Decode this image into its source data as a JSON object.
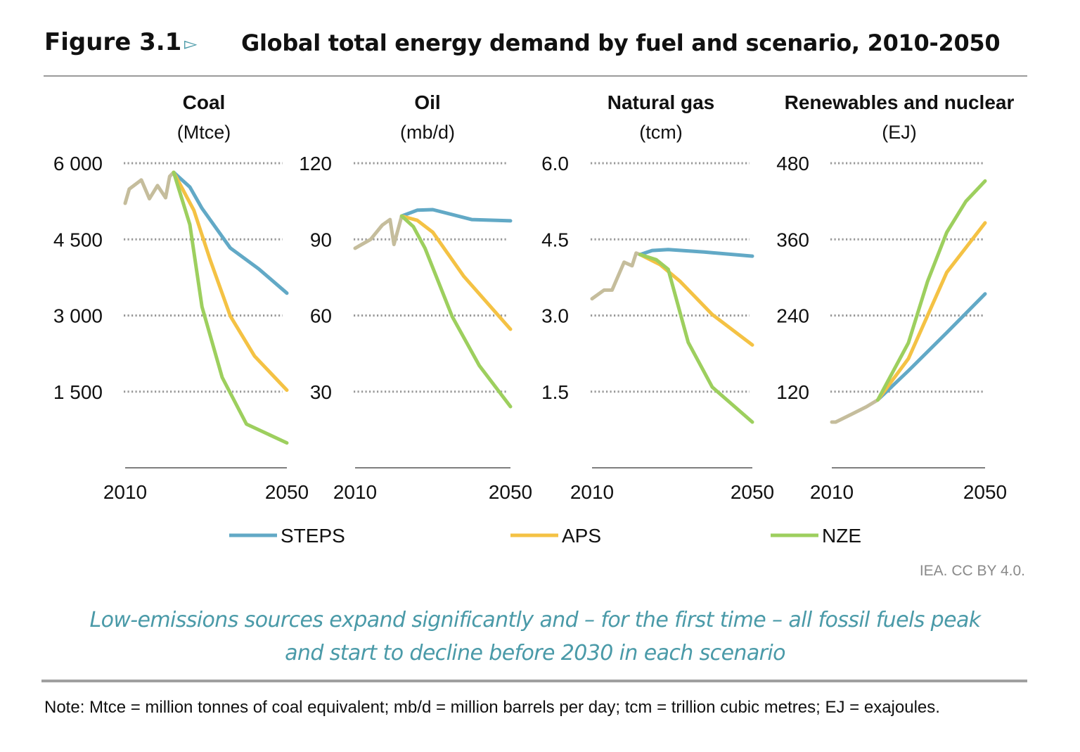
{
  "header": {
    "figure_label": "Figure 3.1",
    "arrow_icon": "triangle-right-outline-icon",
    "title": "Global total energy demand by fuel and scenario, 2010-2050"
  },
  "colors": {
    "historical": "#c5bd9c",
    "STEPS": "#62a9c6",
    "APS": "#f4c244",
    "NZE": "#9dcf5e",
    "accent": "#4a9aa8",
    "grid": "#999999"
  },
  "chart_data": [
    {
      "type": "line",
      "title": "Coal",
      "unit": "(Mtce)",
      "xlim": [
        2010,
        2050
      ],
      "ylim": [
        0,
        6000
      ],
      "yticks": [
        "6 000",
        "4 500",
        "3 000",
        "1 500"
      ],
      "ytick_values": [
        6000,
        4500,
        3000,
        1500
      ],
      "xticks": [
        "2010",
        "2050"
      ],
      "grid": true,
      "historical": {
        "x": [
          2010,
          2011,
          2014,
          2016,
          2018,
          2020,
          2021,
          2022
        ],
        "y": [
          5210,
          5490,
          5670,
          5300,
          5560,
          5320,
          5740,
          5820
        ]
      },
      "series": [
        {
          "name": "STEPS",
          "x": [
            2022,
            2026,
            2029,
            2036,
            2043,
            2050
          ],
          "y": [
            5820,
            5530,
            5110,
            4330,
            3920,
            3440
          ]
        },
        {
          "name": "APS",
          "x": [
            2022,
            2027,
            2031,
            2036,
            2042,
            2050
          ],
          "y": [
            5820,
            5070,
            4100,
            2990,
            2200,
            1530
          ]
        },
        {
          "name": "NZE",
          "x": [
            2022,
            2026,
            2029,
            2034,
            2040,
            2050
          ],
          "y": [
            5820,
            4790,
            3170,
            1780,
            860,
            490
          ]
        }
      ]
    },
    {
      "type": "line",
      "title": "Oil",
      "unit": "(mb/d)",
      "xlim": [
        2010,
        2050
      ],
      "ylim": [
        0,
        120
      ],
      "yticks": [
        "120",
        "90",
        "60",
        "30"
      ],
      "ytick_values": [
        120,
        90,
        60,
        30
      ],
      "xticks": [
        "2010",
        "2050"
      ],
      "grid": true,
      "historical": {
        "x": [
          2010,
          2014,
          2017,
          2019,
          2020,
          2022
        ],
        "y": [
          86.5,
          90,
          95.6,
          97.8,
          88,
          99.2
        ]
      },
      "series": [
        {
          "name": "STEPS",
          "x": [
            2022,
            2026,
            2030,
            2040,
            2050
          ],
          "y": [
            99.2,
            101.5,
            101.7,
            97.8,
            97.3
          ]
        },
        {
          "name": "APS",
          "x": [
            2022,
            2026,
            2030,
            2038,
            2050
          ],
          "y": [
            99.2,
            97.5,
            92.8,
            75.4,
            54.6
          ]
        },
        {
          "name": "NZE",
          "x": [
            2022,
            2025,
            2028,
            2035,
            2042,
            2050
          ],
          "y": [
            99.2,
            95,
            86.5,
            59.6,
            40.2,
            24.1
          ]
        }
      ]
    },
    {
      "type": "line",
      "title": "Natural gas",
      "unit": "(tcm)",
      "xlim": [
        2010,
        2050
      ],
      "ylim": [
        0,
        6
      ],
      "yticks": [
        "6.0",
        "4.5",
        "3.0",
        "1.5"
      ],
      "ytick_values": [
        6,
        4.5,
        3,
        1.5
      ],
      "xticks": [
        "2010",
        "2050"
      ],
      "grid": true,
      "historical": {
        "x": [
          2010,
          2013,
          2015,
          2018,
          2020,
          2021,
          2022
        ],
        "y": [
          3.33,
          3.5,
          3.5,
          4.05,
          3.98,
          4.23,
          4.2
        ]
      },
      "series": [
        {
          "name": "STEPS",
          "x": [
            2022,
            2025,
            2029,
            2038,
            2050
          ],
          "y": [
            4.2,
            4.28,
            4.3,
            4.25,
            4.17
          ]
        },
        {
          "name": "APS",
          "x": [
            2022,
            2027,
            2032,
            2040,
            2050
          ],
          "y": [
            4.2,
            4.0,
            3.67,
            3.02,
            2.42
          ]
        },
        {
          "name": "NZE",
          "x": [
            2022,
            2026,
            2029,
            2034,
            2040,
            2050
          ],
          "y": [
            4.2,
            4.1,
            3.91,
            2.47,
            1.59,
            0.9
          ]
        }
      ]
    },
    {
      "type": "line",
      "title": "Renewables and nuclear",
      "unit": "(EJ)",
      "xlim": [
        2010,
        2050
      ],
      "ylim": [
        0,
        480
      ],
      "yticks": [
        "480",
        "360",
        "240",
        "120"
      ],
      "ytick_values": [
        480,
        360,
        240,
        120
      ],
      "xticks": [
        "2010",
        "2050"
      ],
      "grid": true,
      "historical": {
        "x": [
          2010,
          2011,
          2015,
          2019,
          2022
        ],
        "y": [
          72,
          72,
          84,
          96,
          107
        ]
      },
      "series": [
        {
          "name": "STEPS",
          "x": [
            2022,
            2030,
            2040,
            2050
          ],
          "y": [
            107,
            153,
            213,
            274
          ]
        },
        {
          "name": "APS",
          "x": [
            2022,
            2030,
            2040,
            2050
          ],
          "y": [
            107,
            172,
            308,
            386
          ]
        },
        {
          "name": "NZE",
          "x": [
            2022,
            2030,
            2035,
            2040,
            2045,
            2050
          ],
          "y": [
            107,
            197,
            294,
            371,
            420,
            452
          ]
        }
      ]
    }
  ],
  "legend": [
    {
      "name": "STEPS"
    },
    {
      "name": "APS"
    },
    {
      "name": "NZE"
    }
  ],
  "source": "IEA. CC BY 4.0.",
  "subtitle_line1": "Low-emissions sources expand significantly and – for the first time – all fossil fuels peak",
  "subtitle_line2": "and start to decline before 2030 in each scenario",
  "note": "Note: Mtce = million tonnes of coal equivalent; mb/d = million barrels per day; tcm = trillion cubic metres; EJ = exajoules."
}
